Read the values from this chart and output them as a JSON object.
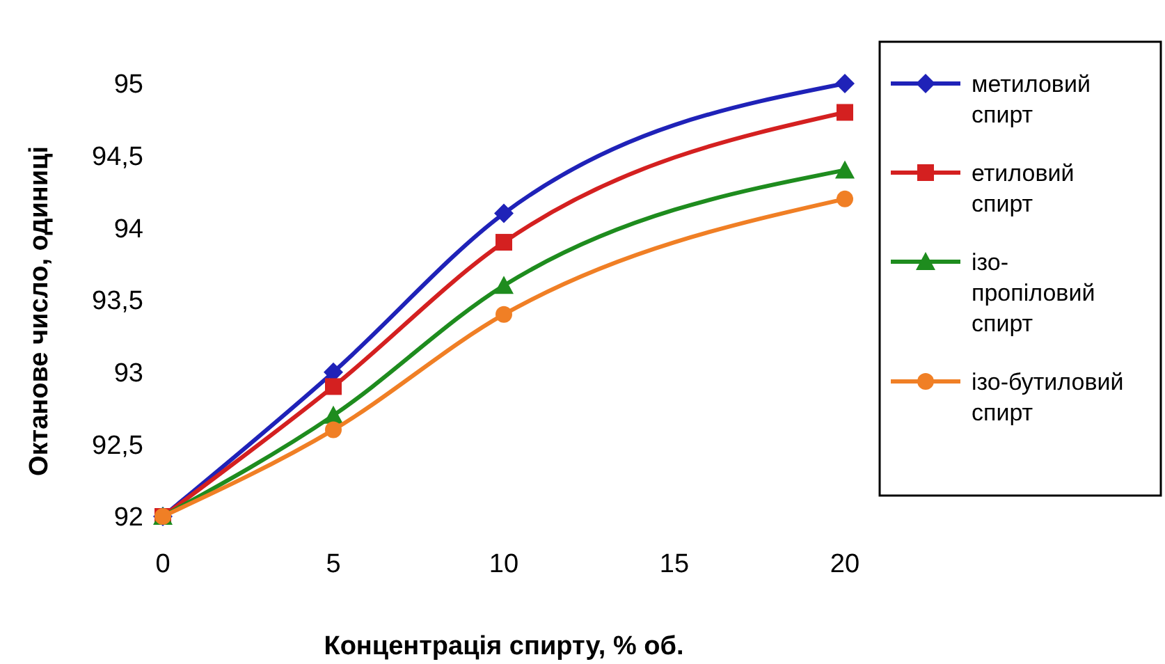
{
  "chart_data": {
    "type": "line",
    "xlabel": "Концентрація  спирту, % об.",
    "ylabel": "Октанове  число, одиниці",
    "x": [
      0,
      5,
      10,
      20
    ],
    "series": [
      {
        "name": "метиловий спирт",
        "color": "#1f22b8",
        "marker": "diamond",
        "values": [
          92,
          93,
          94.1,
          95
        ]
      },
      {
        "name": "етиловий спирт",
        "color": "#d42020",
        "marker": "square",
        "values": [
          92,
          92.9,
          93.9,
          94.8
        ]
      },
      {
        "name": "ізо-пропіловий спирт",
        "color": "#1e8c1e",
        "marker": "triangle",
        "values": [
          92,
          92.7,
          93.6,
          94.4
        ]
      },
      {
        "name": "ізо-бутиловий спирт",
        "color": "#f07f25",
        "marker": "circle",
        "values": [
          92,
          92.6,
          93.4,
          94.2
        ]
      }
    ],
    "xlim": [
      0,
      20
    ],
    "xticks": [
      0,
      5,
      10,
      15,
      20
    ],
    "ylim": [
      92,
      95
    ],
    "yticks": [
      92,
      {
        "value": 92.5,
        "label": "92,5"
      },
      93,
      {
        "value": 93.5,
        "label": "93,5"
      },
      94,
      {
        "value": 94.5,
        "label": "94,5"
      },
      95
    ],
    "grid": false,
    "legend": "right",
    "line_style": "solid"
  }
}
